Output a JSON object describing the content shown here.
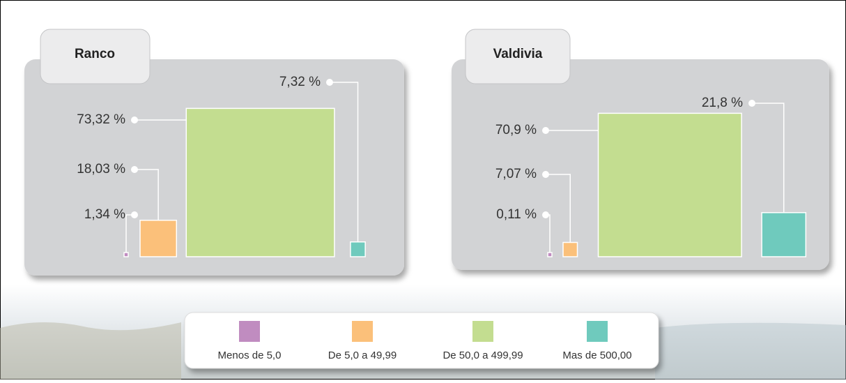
{
  "chart_data": [
    {
      "type": "square-area",
      "title": "Ranco",
      "values": [
        1.34,
        18.03,
        73.32,
        7.32
      ],
      "value_labels": [
        "1,34 %",
        "18,03 %",
        "73,32 %",
        "7,32 %"
      ]
    },
    {
      "type": "square-area",
      "title": "Valdivia",
      "values": [
        0.11,
        7.07,
        70.9,
        21.8
      ],
      "value_labels": [
        "0,11 %",
        "7,07 %",
        "70,9 %",
        "21,8 %"
      ]
    }
  ],
  "legend": {
    "labels": [
      "Menos de 5,0",
      "De 5,0 a 49,99",
      "De 50,0 a 499,99",
      "Mas de 500,00"
    ],
    "colors": [
      "#c08cc0",
      "#fbc07a",
      "#c3dd90",
      "#6fcabd"
    ]
  }
}
